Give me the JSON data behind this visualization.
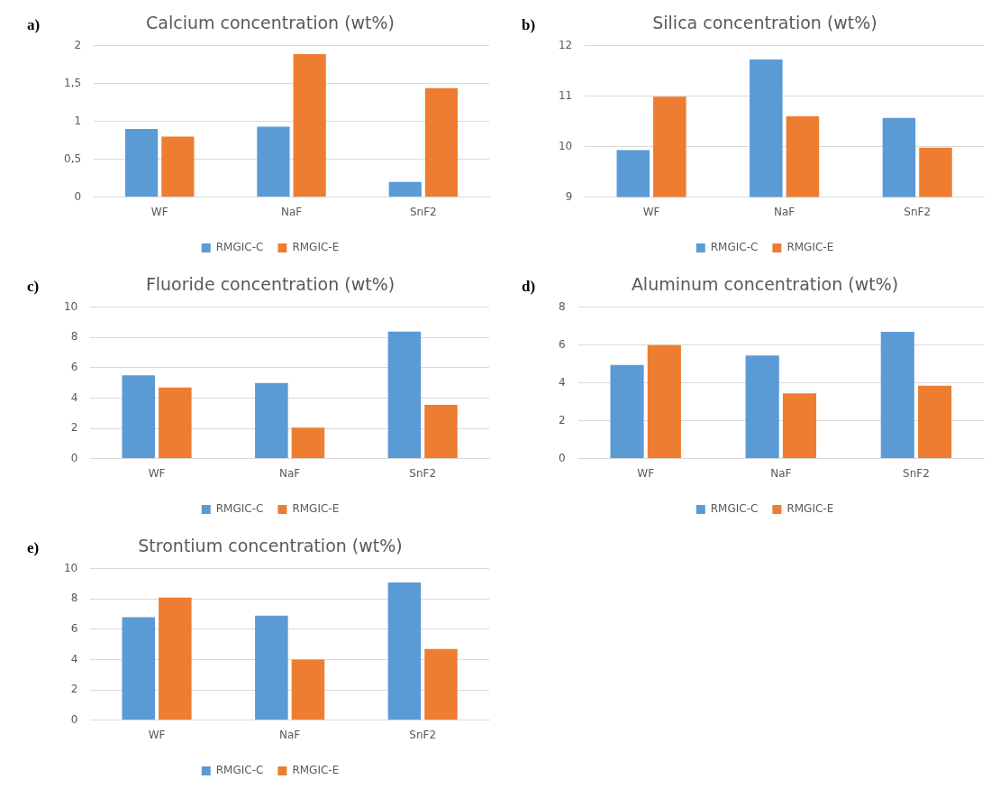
{
  "chart_data": [
    {
      "type": "bar",
      "title": "Calcium concentration (wt%)",
      "annotations": [
        "a)"
      ],
      "categories": [
        "WF",
        "NaF",
        "SnF2"
      ],
      "series": [
        {
          "name": "RMGIC-C",
          "color": "#5b9bd5",
          "values": [
            0.9,
            0.93,
            0.2
          ]
        },
        {
          "name": "RMGIC-E",
          "color": "#ed7d31",
          "values": [
            0.8,
            1.89,
            1.44
          ]
        }
      ],
      "ylim": [
        0,
        2
      ],
      "yticks": [
        0,
        {
          "value": 0.5,
          "label": "0,5"
        },
        1,
        {
          "value": 1.5,
          "label": "1,5"
        },
        2
      ],
      "grid": "y",
      "legend": "bottom"
    },
    {
      "type": "bar",
      "title": "Silica concentration (wt%)",
      "annotations": [
        "b)"
      ],
      "categories": [
        "WF",
        "NaF",
        "SnF2"
      ],
      "series": [
        {
          "name": "RMGIC-C",
          "color": "#5b9bd5",
          "values": [
            9.93,
            11.73,
            10.57
          ]
        },
        {
          "name": "RMGIC-E",
          "color": "#ed7d31",
          "values": [
            10.99,
            10.6,
            9.98
          ]
        }
      ],
      "ylim": [
        9,
        12
      ],
      "yticks": [
        9,
        10,
        11,
        12
      ],
      "grid": "y",
      "legend": "bottom"
    },
    {
      "type": "bar",
      "title": "Fluoride concentration (wt%)",
      "annotations": [
        "c)"
      ],
      "categories": [
        "WF",
        "NaF",
        "SnF2"
      ],
      "series": [
        {
          "name": "RMGIC-C",
          "color": "#5b9bd5",
          "values": [
            5.5,
            5.0,
            8.4
          ]
        },
        {
          "name": "RMGIC-E",
          "color": "#ed7d31",
          "values": [
            4.7,
            2.05,
            3.55
          ]
        }
      ],
      "ylim": [
        0,
        10
      ],
      "yticks": [
        0,
        2,
        4,
        6,
        8,
        10
      ],
      "grid": "y",
      "legend": "bottom"
    },
    {
      "type": "bar",
      "title": "Aluminum concentration (wt%)",
      "annotations": [
        "d)"
      ],
      "categories": [
        "WF",
        "NaF",
        "SnF2"
      ],
      "series": [
        {
          "name": "RMGIC-C",
          "color": "#5b9bd5",
          "values": [
            4.95,
            5.45,
            6.7
          ]
        },
        {
          "name": "RMGIC-E",
          "color": "#ed7d31",
          "values": [
            6.0,
            3.45,
            3.85
          ]
        }
      ],
      "ylim": [
        0,
        8
      ],
      "yticks": [
        0,
        2,
        4,
        6,
        8
      ],
      "grid": "y",
      "legend": "bottom"
    },
    {
      "type": "bar",
      "title": "Strontium concentration (wt%)",
      "annotations": [
        "e)"
      ],
      "categories": [
        "WF",
        "NaF",
        "SnF2"
      ],
      "series": [
        {
          "name": "RMGIC-C",
          "color": "#5b9bd5",
          "values": [
            6.8,
            6.9,
            9.1
          ]
        },
        {
          "name": "RMGIC-E",
          "color": "#ed7d31",
          "values": [
            8.1,
            4.0,
            4.7
          ]
        }
      ],
      "ylim": [
        0,
        10
      ],
      "yticks": [
        0,
        2,
        4,
        6,
        8,
        10
      ],
      "grid": "y",
      "legend": "bottom"
    }
  ]
}
